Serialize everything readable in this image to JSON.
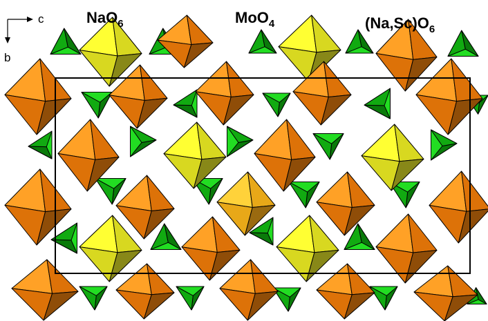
{
  "labels": {
    "na": {
      "main": "NaO",
      "sub": "6"
    },
    "mo": {
      "main": "MoO",
      "sub": "4"
    },
    "nasc": {
      "main": "(Na,Sc)O",
      "sub": "6"
    }
  },
  "axes": {
    "horizontal": "c",
    "vertical": "b"
  },
  "colors": {
    "tetra": [
      "#22dd22",
      "#11aa11",
      "#0a7a0a"
    ],
    "orange": [
      "#ffa126",
      "#dd7208",
      "#8f4d08"
    ],
    "yellow": [
      "#ffff33",
      "#d8d820",
      "#888818"
    ],
    "gold": [
      "#ffd23a",
      "#e8a818",
      "#9a6a10"
    ]
  }
}
